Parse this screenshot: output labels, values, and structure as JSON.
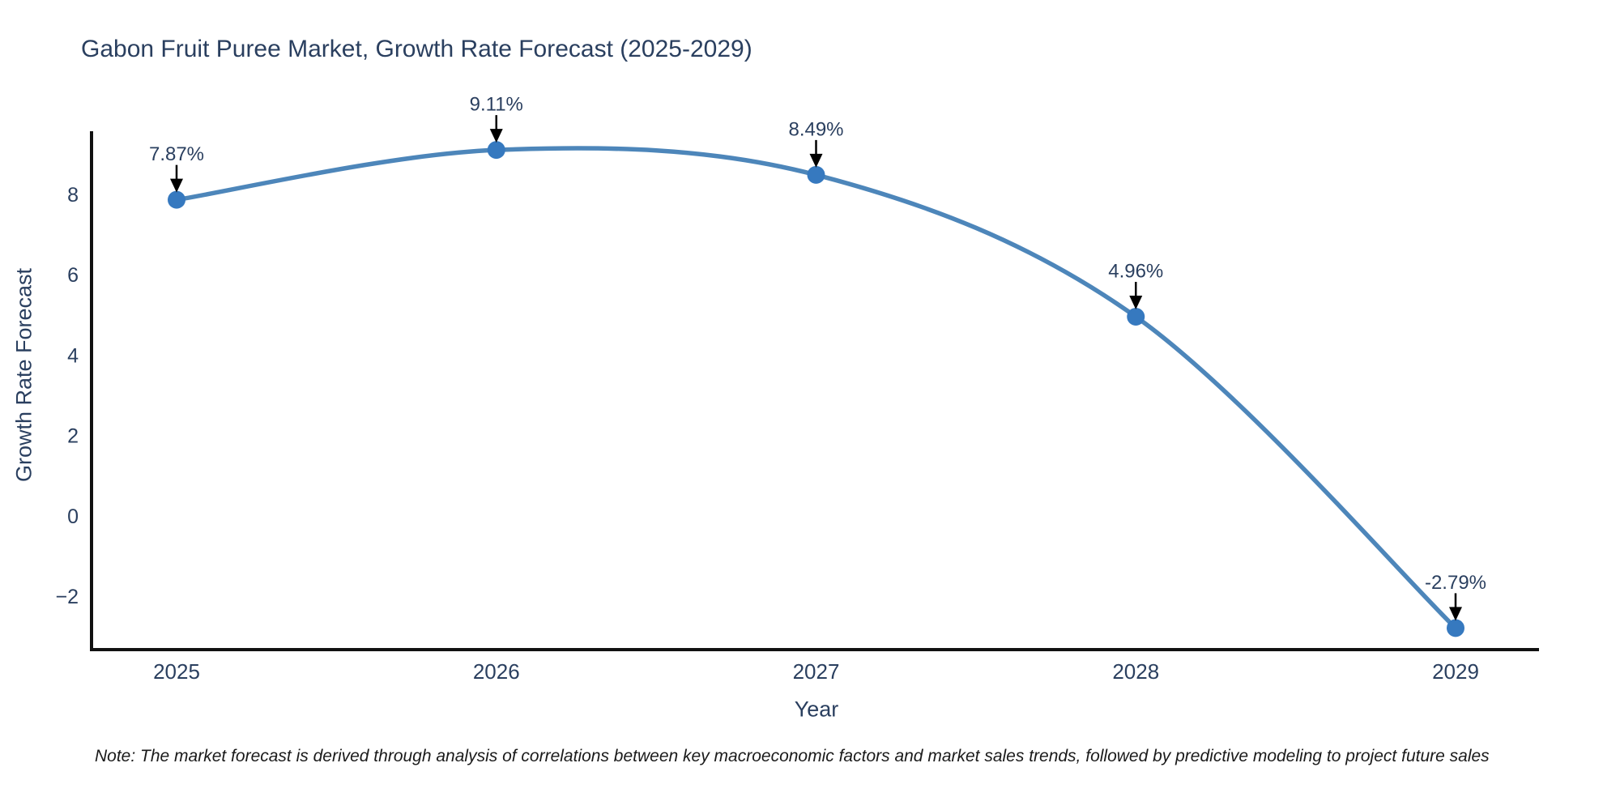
{
  "chart_data": {
    "type": "line",
    "title": "Gabon Fruit Puree Market, Growth Rate Forecast (2025-2029)",
    "xlabel": "Year",
    "ylabel": "Growth Rate Forecast",
    "x": [
      2025,
      2026,
      2027,
      2028,
      2029
    ],
    "y": [
      7.87,
      9.11,
      8.49,
      4.96,
      -2.79
    ],
    "point_labels": [
      "7.87%",
      "9.11%",
      "8.49%",
      "4.96%",
      "-2.79%"
    ],
    "x_tick_labels": [
      "2025",
      "2026",
      "2027",
      "2028",
      "2029"
    ],
    "y_tick_values": [
      8,
      6,
      4,
      2,
      0,
      -2
    ],
    "y_tick_labels": [
      "8",
      "6",
      "4",
      "2",
      "0",
      "−2"
    ],
    "ylim": [
      -3.3,
      9.6
    ],
    "grid": false,
    "legend_position": "none",
    "line_shape": "spline",
    "colors": {
      "line": "#4d86ba",
      "marker": "#3679bf",
      "arrow": "#000000",
      "axis": "#111111",
      "text": "#2a3f5f"
    },
    "note": "Note: The market forecast is derived through analysis of correlations between key macroeconomic factors and market sales trends, followed by predictive modeling to project future sales"
  }
}
